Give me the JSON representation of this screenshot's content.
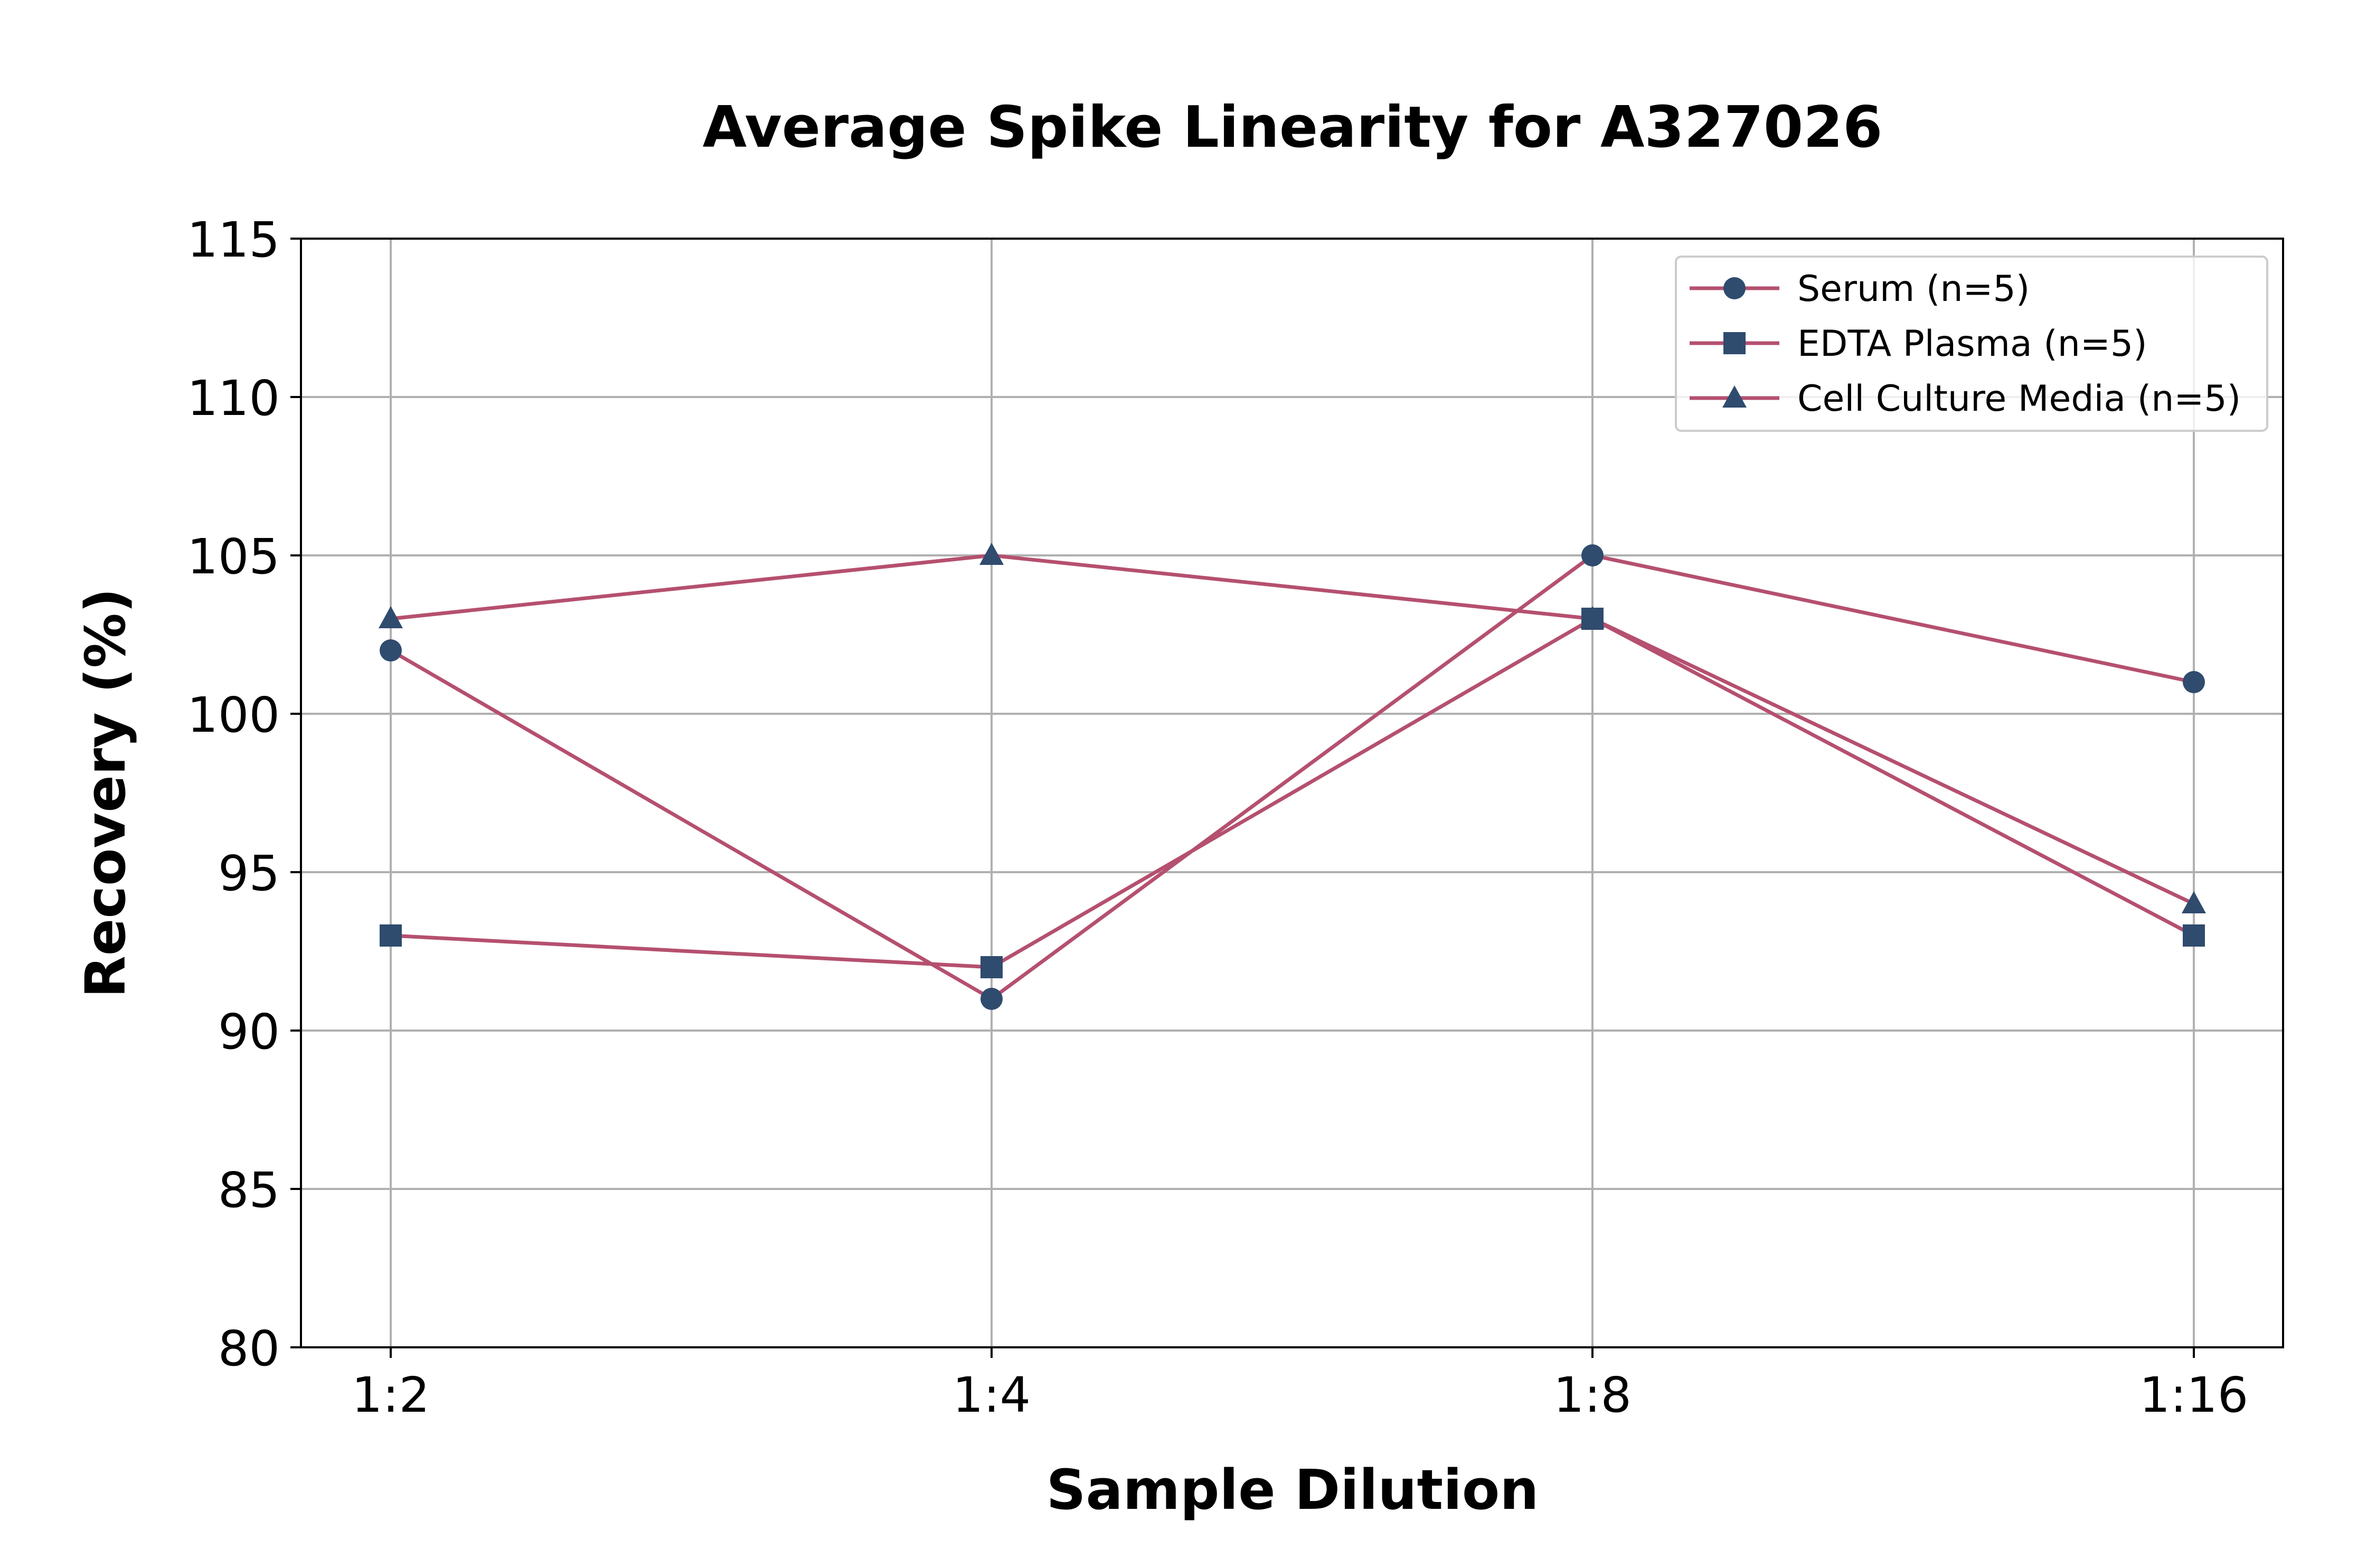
{
  "chart_data": {
    "type": "line",
    "title": "Average Spike Linearity for A327026",
    "xlabel": "Sample Dilution",
    "ylabel": "Recovery (%)",
    "categories": [
      "1:2",
      "1:4",
      "1:8",
      "1:16"
    ],
    "ylim": [
      80,
      115
    ],
    "yticks": [
      80,
      85,
      90,
      95,
      100,
      105,
      110,
      115
    ],
    "grid": true,
    "legend_position": "top-right",
    "colors": {
      "line": "#b5506f",
      "marker": "#2f4b6e",
      "grid": "#b0b0b0"
    },
    "series": [
      {
        "name": "Serum (n=5)",
        "marker": "circle",
        "values": [
          102,
          91,
          105,
          101
        ]
      },
      {
        "name": "EDTA Plasma (n=5)",
        "marker": "square",
        "values": [
          93,
          92,
          103,
          93
        ]
      },
      {
        "name": "Cell Culture Media (n=5)",
        "marker": "triangle",
        "values": [
          103,
          105,
          103,
          94
        ]
      }
    ]
  }
}
